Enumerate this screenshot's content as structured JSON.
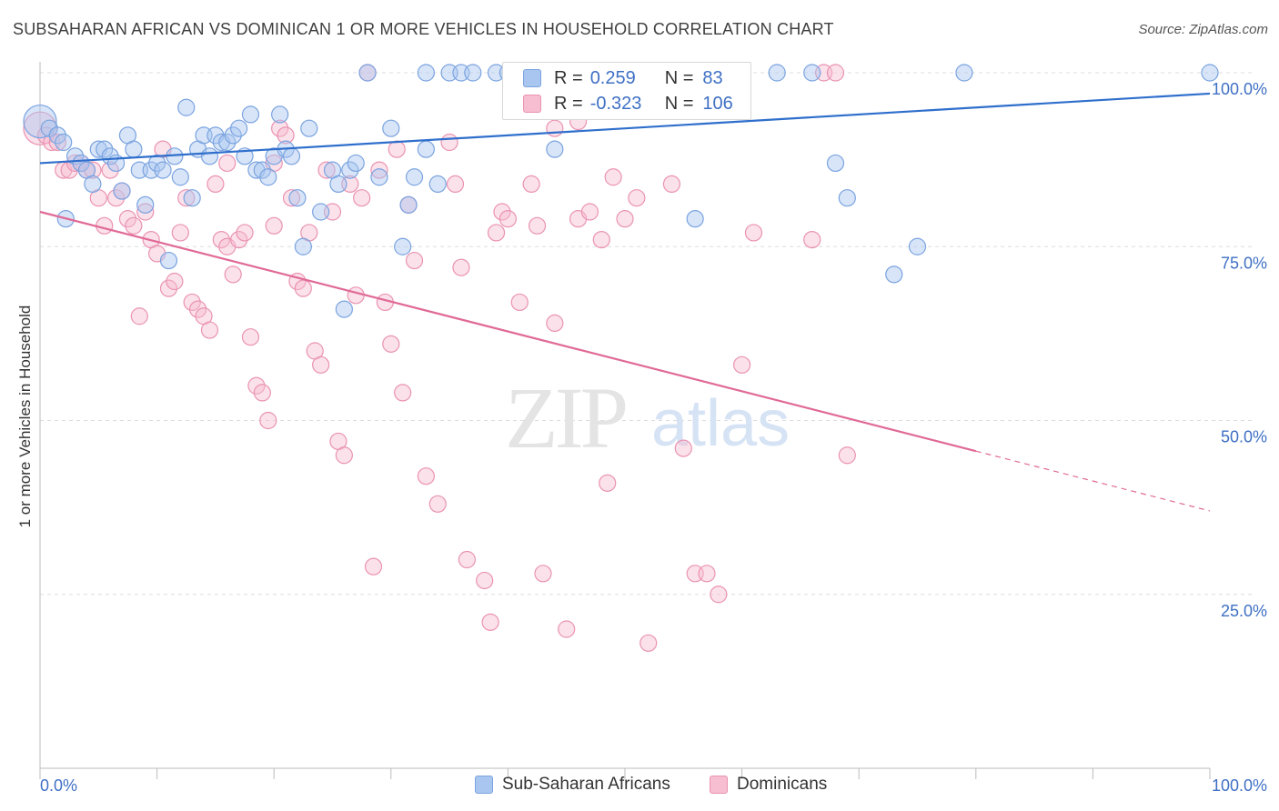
{
  "header": {
    "title": "SUBSAHARAN AFRICAN VS DOMINICAN 1 OR MORE VEHICLES IN HOUSEHOLD CORRELATION CHART",
    "source": "Source: ZipAtlas.com"
  },
  "watermark": {
    "zip": "ZIP",
    "atlas": "atlas"
  },
  "legend": {
    "rows": [
      {
        "r_label": "R =",
        "r_value": "0.259",
        "n_label": "N =",
        "n_value": "83"
      },
      {
        "r_label": "R =",
        "r_value": "-0.323",
        "n_label": "N =",
        "n_value": "106"
      }
    ]
  },
  "bottom_legend": {
    "items": [
      "Sub-Saharan Africans",
      "Dominicans"
    ]
  },
  "colors": {
    "blue_fill": "#a9c6f0",
    "blue_stroke": "#7aa3e0",
    "blue_line": "#2f6fcc",
    "pink_fill": "#f7bdd0",
    "pink_stroke": "#ea93b2",
    "pink_line": "#e06a96",
    "axis_text": "#3f70c4",
    "grid": "#dddddd"
  },
  "chart_data": {
    "type": "scatter",
    "title": "SUBSAHARAN AFRICAN VS DOMINICAN 1 OR MORE VEHICLES IN HOUSEHOLD CORRELATION CHART",
    "xlabel": "",
    "ylabel": "1 or more Vehicles in Household",
    "xlim": [
      0,
      100
    ],
    "ylim": [
      0,
      100
    ],
    "x_tick_labels": [
      "0.0%",
      "100.0%"
    ],
    "y_tick_labels": [
      "25.0%",
      "50.0%",
      "75.0%",
      "100.0%"
    ],
    "y_ticks": [
      25,
      50,
      75,
      100
    ],
    "grid": true,
    "legend_position": "top-center",
    "series": [
      {
        "name": "Sub-Saharan Africans",
        "R": 0.259,
        "N": 83,
        "trend": {
          "x0": 0,
          "y0": 87.0,
          "x1": 100,
          "y1": 97.0
        },
        "points": [
          [
            0,
            93
          ],
          [
            0.8,
            92
          ],
          [
            1.5,
            91
          ],
          [
            2,
            90
          ],
          [
            2.2,
            79
          ],
          [
            3,
            88
          ],
          [
            3.5,
            87
          ],
          [
            4,
            86
          ],
          [
            4.5,
            84
          ],
          [
            5,
            89
          ],
          [
            5.5,
            89
          ],
          [
            6,
            88
          ],
          [
            6.5,
            87
          ],
          [
            7,
            83
          ],
          [
            7.5,
            91
          ],
          [
            8,
            89
          ],
          [
            8.5,
            86
          ],
          [
            9,
            81
          ],
          [
            9.5,
            86
          ],
          [
            10,
            87
          ],
          [
            10.5,
            86
          ],
          [
            11,
            73
          ],
          [
            11.5,
            88
          ],
          [
            12,
            85
          ],
          [
            12.5,
            95
          ],
          [
            13,
            82
          ],
          [
            13.5,
            89
          ],
          [
            14,
            91
          ],
          [
            14.5,
            88
          ],
          [
            15,
            91
          ],
          [
            15.5,
            90
          ],
          [
            16,
            90
          ],
          [
            16.5,
            91
          ],
          [
            17,
            92
          ],
          [
            17.5,
            88
          ],
          [
            18,
            94
          ],
          [
            18.5,
            86
          ],
          [
            19,
            86
          ],
          [
            19.5,
            85
          ],
          [
            20,
            88
          ],
          [
            20.5,
            94
          ],
          [
            21,
            89
          ],
          [
            21.5,
            88
          ],
          [
            22,
            82
          ],
          [
            22.5,
            75
          ],
          [
            23,
            92
          ],
          [
            24,
            80
          ],
          [
            25,
            86
          ],
          [
            25.5,
            84
          ],
          [
            26,
            66
          ],
          [
            26.5,
            86
          ],
          [
            27,
            87
          ],
          [
            28,
            100
          ],
          [
            29,
            85
          ],
          [
            30,
            92
          ],
          [
            31,
            75
          ],
          [
            31.5,
            81
          ],
          [
            32,
            85
          ],
          [
            33,
            89
          ],
          [
            34,
            84
          ],
          [
            33,
            100
          ],
          [
            35,
            100
          ],
          [
            36,
            100
          ],
          [
            37,
            100
          ],
          [
            39,
            100
          ],
          [
            40,
            100
          ],
          [
            41,
            100
          ],
          [
            42,
            95
          ],
          [
            44,
            89
          ],
          [
            47,
            100
          ],
          [
            50,
            96
          ],
          [
            53,
            100
          ],
          [
            55,
            100
          ],
          [
            56,
            79
          ],
          [
            60,
            100
          ],
          [
            63,
            100
          ],
          [
            66,
            100
          ],
          [
            68,
            87
          ],
          [
            69,
            82
          ],
          [
            73,
            71
          ],
          [
            75,
            75
          ],
          [
            79,
            100
          ],
          [
            100,
            100
          ]
        ]
      },
      {
        "name": "Dominicans",
        "R": -0.323,
        "N": 106,
        "trend": {
          "x0": 0,
          "y0": 80.0,
          "x1": 100,
          "y1": 37.0,
          "solid_until_x": 80
        },
        "points": [
          [
            0,
            92
          ],
          [
            0.5,
            91
          ],
          [
            1,
            90
          ],
          [
            1.5,
            90
          ],
          [
            2,
            86
          ],
          [
            2.5,
            86
          ],
          [
            3,
            87
          ],
          [
            3.5,
            87
          ],
          [
            4,
            86
          ],
          [
            4.5,
            86
          ],
          [
            5,
            82
          ],
          [
            5.5,
            78
          ],
          [
            6,
            86
          ],
          [
            6.5,
            82
          ],
          [
            7,
            83
          ],
          [
            7.5,
            79
          ],
          [
            8,
            78
          ],
          [
            8.5,
            65
          ],
          [
            9,
            80
          ],
          [
            9.5,
            76
          ],
          [
            10,
            74
          ],
          [
            10.5,
            89
          ],
          [
            11,
            69
          ],
          [
            11.5,
            70
          ],
          [
            12,
            77
          ],
          [
            12.5,
            82
          ],
          [
            13,
            67
          ],
          [
            13.5,
            66
          ],
          [
            14,
            65
          ],
          [
            14.5,
            63
          ],
          [
            15,
            84
          ],
          [
            15.5,
            76
          ],
          [
            16,
            75
          ],
          [
            16.5,
            71
          ],
          [
            17,
            76
          ],
          [
            17.5,
            77
          ],
          [
            18,
            62
          ],
          [
            18.5,
            55
          ],
          [
            19,
            54
          ],
          [
            19.5,
            50
          ],
          [
            20,
            78
          ],
          [
            20.5,
            92
          ],
          [
            21,
            91
          ],
          [
            21.5,
            82
          ],
          [
            22,
            70
          ],
          [
            22.5,
            69
          ],
          [
            23,
            77
          ],
          [
            23.5,
            60
          ],
          [
            24,
            58
          ],
          [
            24.5,
            86
          ],
          [
            25,
            80
          ],
          [
            25.5,
            47
          ],
          [
            26,
            45
          ],
          [
            26.5,
            84
          ],
          [
            27,
            68
          ],
          [
            27.5,
            82
          ],
          [
            28,
            100
          ],
          [
            28.5,
            29
          ],
          [
            29,
            86
          ],
          [
            29.5,
            67
          ],
          [
            30,
            61
          ],
          [
            30.5,
            89
          ],
          [
            31,
            54
          ],
          [
            31.5,
            81
          ],
          [
            32,
            73
          ],
          [
            33,
            42
          ],
          [
            34,
            38
          ],
          [
            35,
            90
          ],
          [
            35.5,
            84
          ],
          [
            36,
            72
          ],
          [
            36.5,
            30
          ],
          [
            38,
            27
          ],
          [
            38.5,
            21
          ],
          [
            39,
            77
          ],
          [
            39.5,
            80
          ],
          [
            40,
            79
          ],
          [
            41,
            67
          ],
          [
            42,
            84
          ],
          [
            42.5,
            78
          ],
          [
            43,
            28
          ],
          [
            44,
            64
          ],
          [
            45,
            20
          ],
          [
            46,
            79
          ],
          [
            47,
            80
          ],
          [
            48,
            76
          ],
          [
            48.5,
            41
          ],
          [
            49,
            85
          ],
          [
            50,
            79
          ],
          [
            51,
            82
          ],
          [
            52,
            18
          ],
          [
            53,
            100
          ],
          [
            54,
            84
          ],
          [
            55,
            46
          ],
          [
            56,
            28
          ],
          [
            57,
            28
          ],
          [
            58,
            25
          ],
          [
            60,
            58
          ],
          [
            61,
            77
          ],
          [
            66,
            76
          ],
          [
            67,
            100
          ],
          [
            68,
            100
          ],
          [
            69,
            45
          ],
          [
            44,
            92
          ],
          [
            46,
            93
          ],
          [
            20,
            87
          ],
          [
            16,
            87
          ]
        ]
      }
    ]
  }
}
